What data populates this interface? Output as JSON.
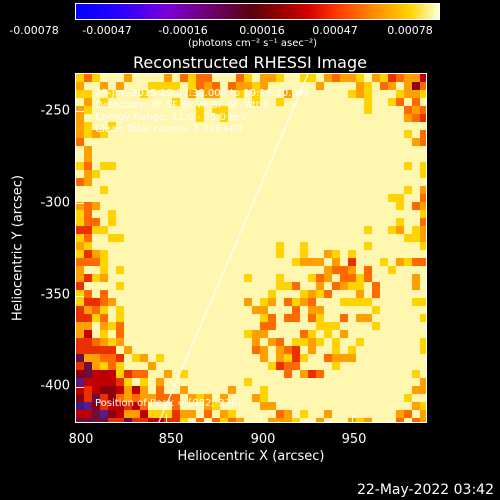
{
  "colorbar": {
    "ticks": [
      "-0.00078",
      "-0.00047",
      "-0.00016",
      "0.00016",
      "0.00047",
      "0.00078"
    ],
    "units": "(photons cm⁻² s⁻¹ asec⁻²)"
  },
  "title": "Reconstructed RHESSI Image",
  "annotations": {
    "time": "23-Jun-2015 19:07:38.000 to 19:10:20.000",
    "detectors": "Detectors: 3F 5F 6F 7F 8F 9F, Att 0",
    "energy": "Energy Range: 12.0 - 25.0 keV",
    "clean": "Clean     Total counts: 3.32E+03",
    "peak": "Position of Peak = [982,-336]"
  },
  "axes": {
    "xlabel": "Heliocentric X (arcsec)",
    "ylabel": "Heliocentric Y (arcsec)",
    "xticks": [
      "800",
      "850",
      "900",
      "950"
    ],
    "yticks": [
      "-250",
      "-300",
      "-350",
      "-400"
    ],
    "xlim": [
      800,
      990
    ],
    "ylim": [
      -422,
      -233
    ]
  },
  "footer_date": "22-May-2022 03:42"
}
